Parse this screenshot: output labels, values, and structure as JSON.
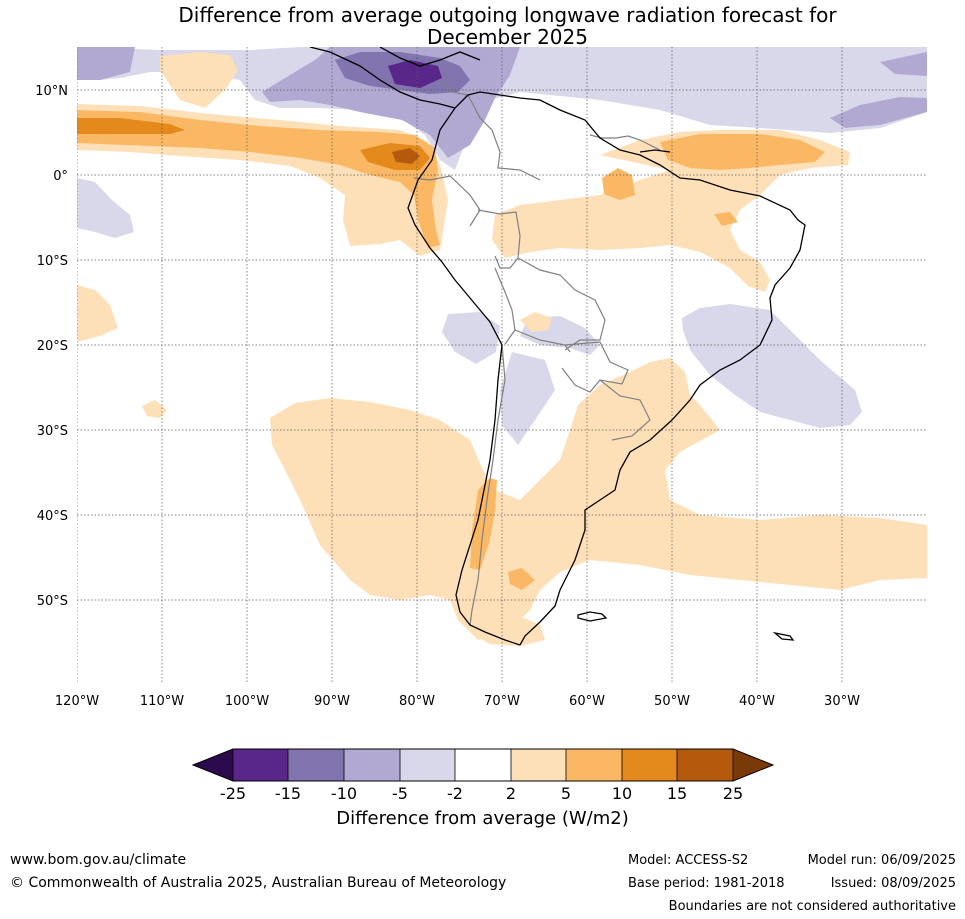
{
  "title": {
    "line1": "Difference from average outgoing longwave radiation forecast for",
    "line2": "December 2025"
  },
  "map": {
    "lat_labels": [
      "10°N",
      "0°",
      "10°S",
      "20°S",
      "30°S",
      "40°S",
      "50°S"
    ],
    "lon_labels": [
      "120°W",
      "110°W",
      "100°W",
      "90°W",
      "80°W",
      "70°W",
      "60°W",
      "50°W",
      "40°W",
      "30°W"
    ],
    "colors": {
      "c_m25": "#2d0a4e",
      "c_m15": "#59268a",
      "c_m10": "#8274ae",
      "c_m5": "#b1a9d2",
      "c_m2": "#d8d8ea",
      "c_0": "#ffffff",
      "c_p2": "#fde0b8",
      "c_p5": "#fbb864",
      "c_p10": "#e48a1c",
      "c_p15": "#b55a0d",
      "c_p25": "#7a3a08",
      "coast": "#000000",
      "border": "#808080"
    }
  },
  "colorbar": {
    "ticks": [
      "-25",
      "-15",
      "-10",
      "-5",
      "-2",
      "2",
      "5",
      "10",
      "15",
      "25"
    ],
    "label": "Difference from average (W/m2)"
  },
  "footer": {
    "website": "www.bom.gov.au/climate",
    "copyright": "© Commonwealth of Australia 2025, Australian Bureau of Meteorology",
    "model": "Model: ACCESS-S2",
    "base_period": "Base period: 1981-2018",
    "model_run": "Model run: 06/09/2025",
    "issued": "Issued: 08/09/2025",
    "disclaimer": "Boundaries are not considered authoritative"
  }
}
